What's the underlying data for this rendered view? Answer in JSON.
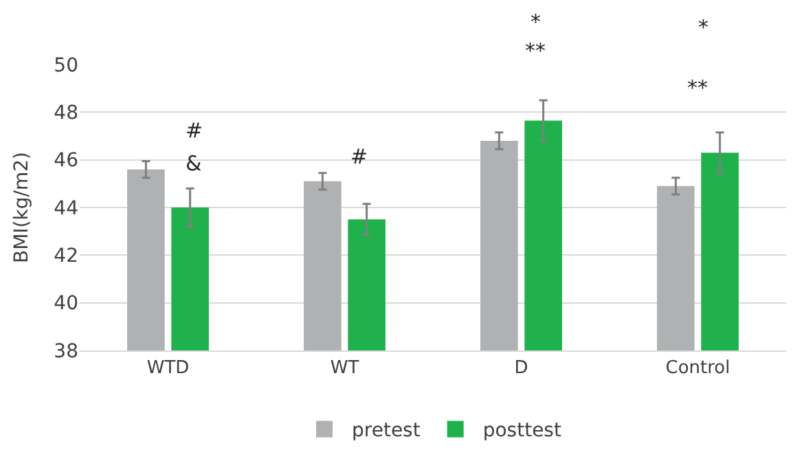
{
  "chart_data": {
    "type": "bar",
    "ylabel": "BMI(kg/m2)",
    "categories": [
      "WTD",
      "WT",
      "D",
      "Control"
    ],
    "series": [
      {
        "name": "pretest",
        "color": "#b0b1b3",
        "values": [
          45.6,
          45.1,
          46.8,
          44.9
        ],
        "errors": [
          0.35,
          0.35,
          0.35,
          0.35
        ]
      },
      {
        "name": "posttest",
        "color": "#20b14c",
        "values": [
          44.0,
          43.5,
          47.65,
          46.3
        ],
        "errors": [
          0.8,
          0.65,
          0.85,
          0.85
        ]
      }
    ],
    "ylim": [
      38,
      50
    ],
    "yticks": [
      38,
      40,
      42,
      44,
      46,
      48,
      50
    ],
    "grid": "y",
    "legend": "bottom",
    "annotations": [
      "#",
      "&",
      "#",
      "*",
      "**",
      "*",
      "**"
    ]
  }
}
